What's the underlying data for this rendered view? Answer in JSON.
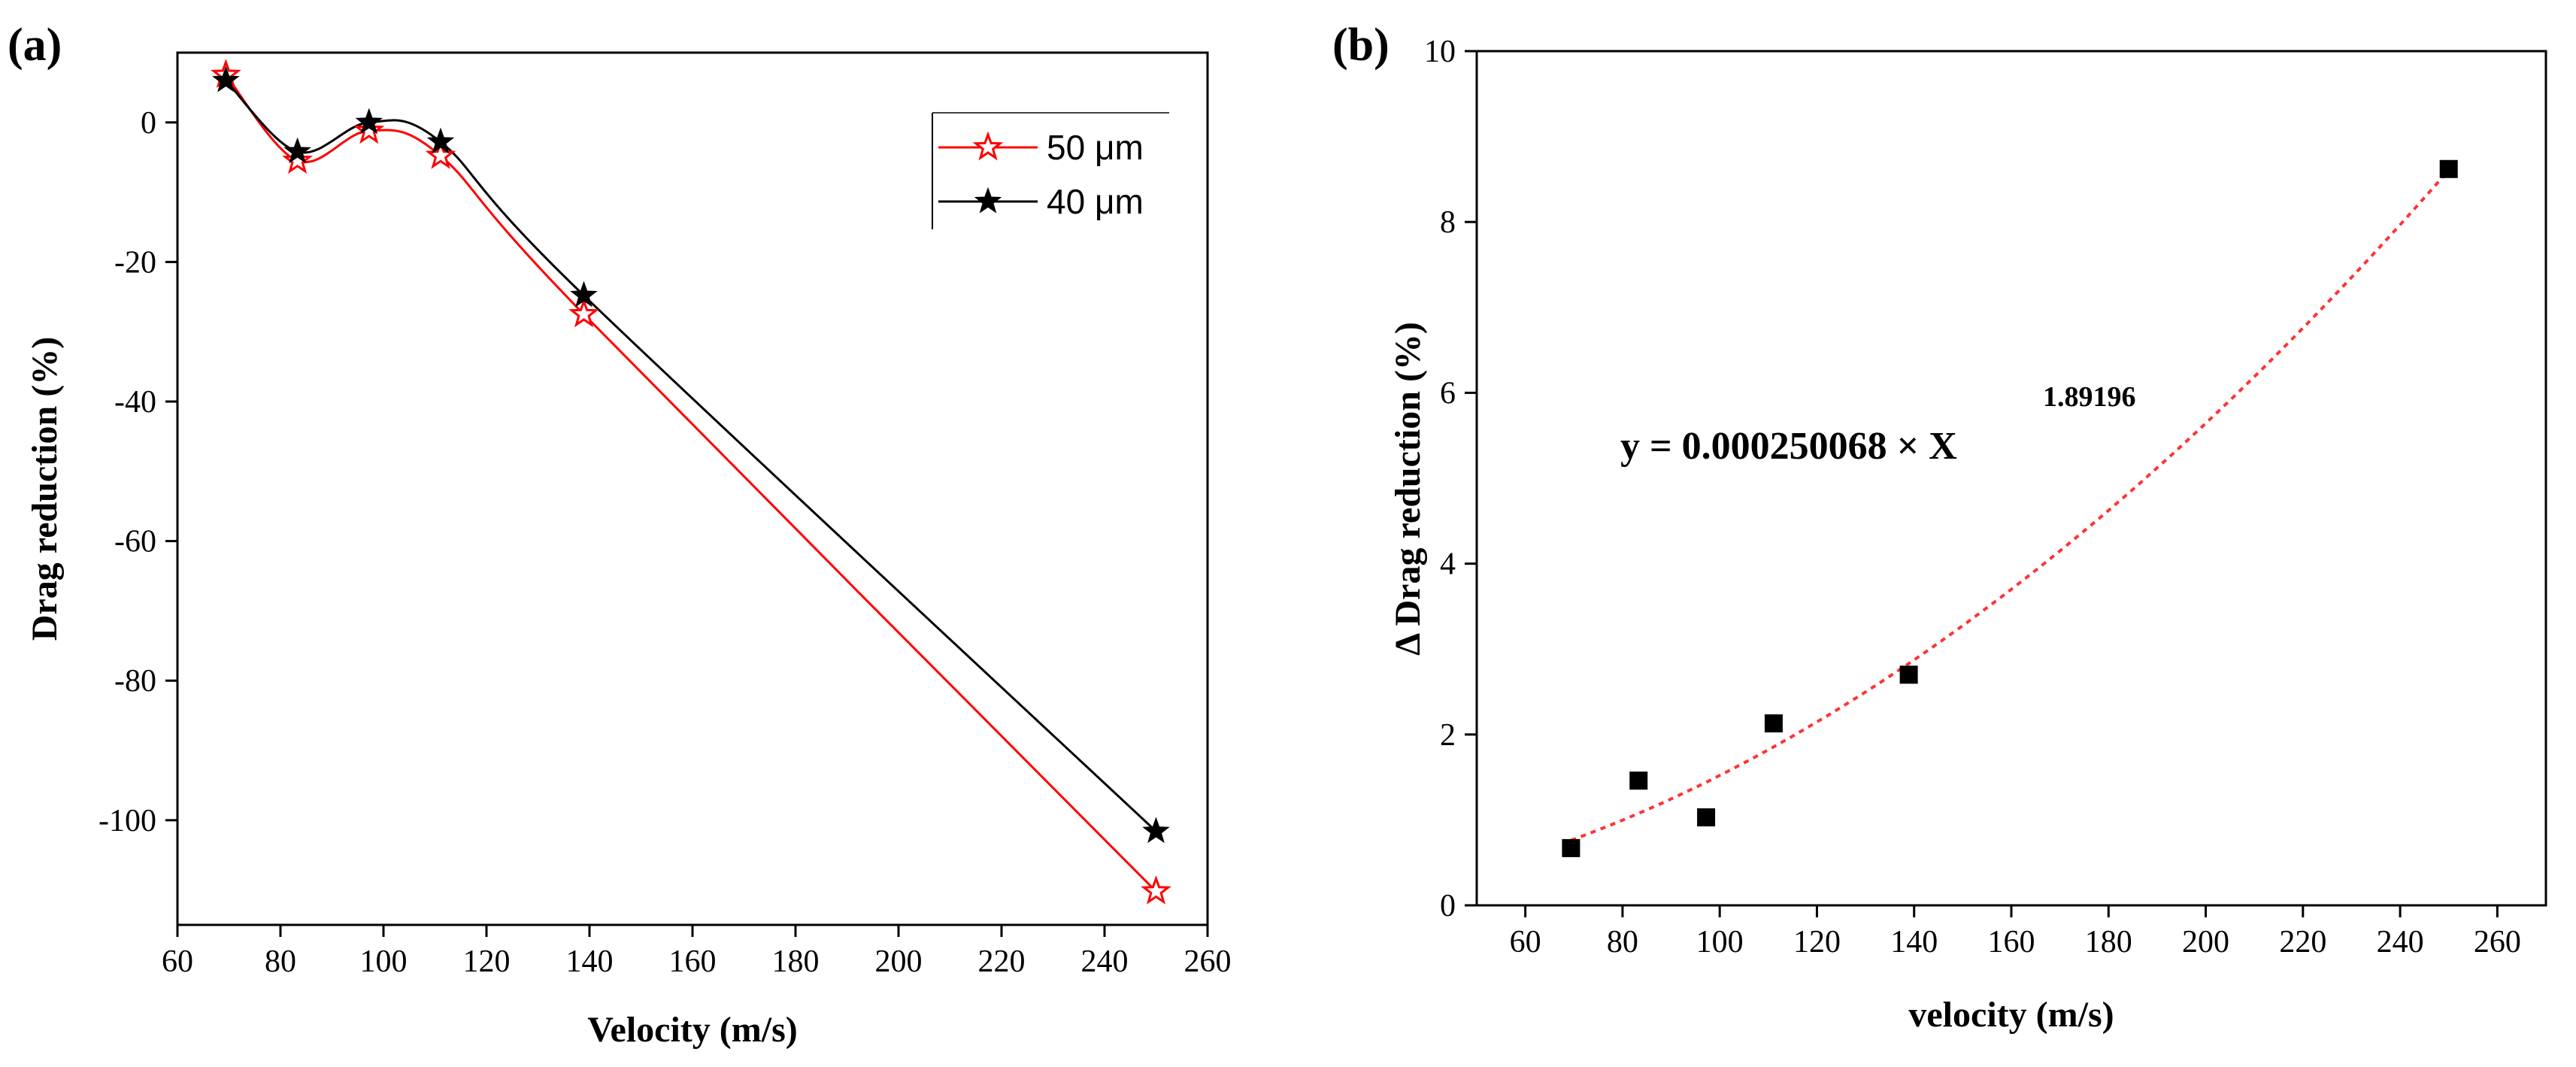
{
  "chart_data": [
    {
      "panel_label": "(a)",
      "type": "line",
      "xlabel": "Velocity (m/s)",
      "ylabel": "Drag reduction (%)",
      "xlim": [
        60,
        260
      ],
      "ylim": [
        -115,
        10
      ],
      "xticks": [
        60,
        80,
        100,
        120,
        140,
        160,
        180,
        200,
        220,
        240,
        260
      ],
      "yticks": [
        0,
        -20,
        -40,
        -60,
        -80,
        -100
      ],
      "legend_position": "top-right",
      "series": [
        {
          "name": "50 μm",
          "color": "#ff0000",
          "marker": "hollow-star",
          "x": [
            69.4,
            83.3,
            97.2,
            111.1,
            138.9,
            250
          ],
          "y": [
            6.8,
            -5.5,
            -1.2,
            -4.8,
            -27.5,
            -110.2
          ]
        },
        {
          "name": "40 μm",
          "color": "#000000",
          "marker": "filled-star",
          "x": [
            69.4,
            83.3,
            97.2,
            111.1,
            138.9,
            250
          ],
          "y": [
            6.0,
            -4.2,
            0.0,
            -2.8,
            -24.8,
            -101.6
          ]
        }
      ]
    },
    {
      "panel_label": "(b)",
      "type": "scatter",
      "xlabel": "velocity (m/s)",
      "ylabel": "Δ Drag reduction (%)",
      "xlim": [
        50,
        270
      ],
      "ylim": [
        0,
        10
      ],
      "xticks": [
        60,
        80,
        100,
        120,
        140,
        160,
        180,
        200,
        220,
        240,
        260
      ],
      "yticks": [
        0,
        2,
        4,
        6,
        8,
        10
      ],
      "series": [
        {
          "name": "Δ Drag reduction",
          "color": "#000000",
          "marker": "filled-square",
          "x": [
            69.4,
            83.3,
            97.2,
            111.1,
            138.9,
            250
          ],
          "y": [
            0.67,
            1.46,
            1.03,
            2.13,
            2.7,
            8.62
          ]
        }
      ],
      "fit": {
        "color": "#ff3333",
        "style": "dotted",
        "coefficient": 0.000250068,
        "exponent": 1.89196,
        "x_range": [
          69.4,
          250
        ]
      },
      "equation_main": "y = 0.000250068 × X",
      "equation_sup": "1.89196"
    }
  ]
}
